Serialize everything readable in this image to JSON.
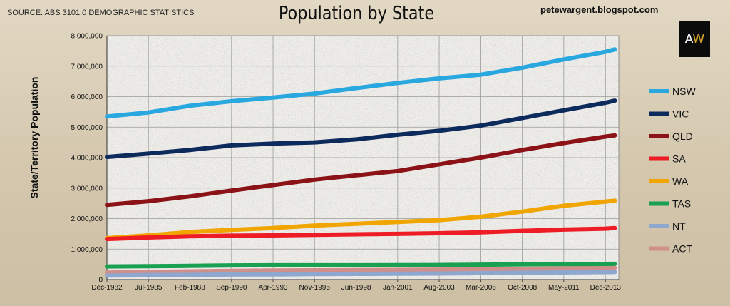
{
  "header": {
    "source": "SOURCE: ABS 3101.0 DEMOGRAPHIC STATISTICS",
    "title": "Population by State",
    "blog": "petewargent.blogspot.com",
    "logo_a": "A",
    "logo_w": "W"
  },
  "chart_data": {
    "type": "line",
    "title": "Population by State",
    "ylabel": "State/Territory Population",
    "xlabel": "",
    "ylim": [
      0,
      8000000
    ],
    "grid": true,
    "legend_position": "right",
    "x_ticks": [
      "Dec-1982",
      "Jul-1985",
      "Feb-1988",
      "Sep-1990",
      "Apr-1993",
      "Nov-1995",
      "Jun-1998",
      "Jan-2001",
      "Aug-2003",
      "Mar-2006",
      "Oct-2008",
      "May-2011",
      "Dec-2013"
    ],
    "y_ticks": [
      "0",
      "1,000,000",
      "2,000,000",
      "3,000,000",
      "4,000,000",
      "5,000,000",
      "6,000,000",
      "7,000,000",
      "8,000,000"
    ],
    "x": [
      1982.92,
      1985.5,
      1988.08,
      1990.67,
      1993.25,
      1995.83,
      1998.42,
      2001.0,
      2003.58,
      2006.17,
      2008.75,
      2011.33,
      2013.92,
      2014.5
    ],
    "series": [
      {
        "name": "NSW",
        "color": "#29a8e0",
        "values": [
          5350000,
          5480000,
          5700000,
          5850000,
          5970000,
          6100000,
          6280000,
          6450000,
          6600000,
          6720000,
          6950000,
          7220000,
          7470000,
          7550000
        ]
      },
      {
        "name": "VIC",
        "color": "#0d2a5c",
        "values": [
          4020000,
          4130000,
          4250000,
          4400000,
          4460000,
          4500000,
          4600000,
          4750000,
          4880000,
          5050000,
          5300000,
          5550000,
          5800000,
          5870000
        ]
      },
      {
        "name": "QLD",
        "color": "#8b1216",
        "values": [
          2450000,
          2570000,
          2730000,
          2920000,
          3100000,
          3280000,
          3420000,
          3560000,
          3780000,
          4000000,
          4250000,
          4480000,
          4690000,
          4730000
        ]
      },
      {
        "name": "SA",
        "color": "#ee1c24",
        "values": [
          1330000,
          1380000,
          1420000,
          1440000,
          1450000,
          1470000,
          1485000,
          1500000,
          1520000,
          1550000,
          1600000,
          1640000,
          1670000,
          1690000
        ]
      },
      {
        "name": "WA",
        "color": "#f0a500",
        "values": [
          1360000,
          1450000,
          1560000,
          1630000,
          1690000,
          1770000,
          1830000,
          1890000,
          1950000,
          2060000,
          2230000,
          2420000,
          2560000,
          2590000
        ]
      },
      {
        "name": "TAS",
        "color": "#1aa051",
        "values": [
          430000,
          440000,
          450000,
          465000,
          470000,
          470000,
          470000,
          472000,
          478000,
          490000,
          500000,
          510000,
          515000,
          516000
        ]
      },
      {
        "name": "NT",
        "color": "#8ea7cf",
        "values": [
          130000,
          150000,
          155000,
          165000,
          170000,
          180000,
          188000,
          195000,
          198000,
          210000,
          225000,
          235000,
          245000,
          247000
        ]
      },
      {
        "name": "ACT",
        "color": "#cf8f8a",
        "values": [
          230000,
          250000,
          270000,
          285000,
          298000,
          305000,
          310000,
          315000,
          325000,
          335000,
          350000,
          370000,
          385000,
          388000
        ]
      }
    ]
  }
}
